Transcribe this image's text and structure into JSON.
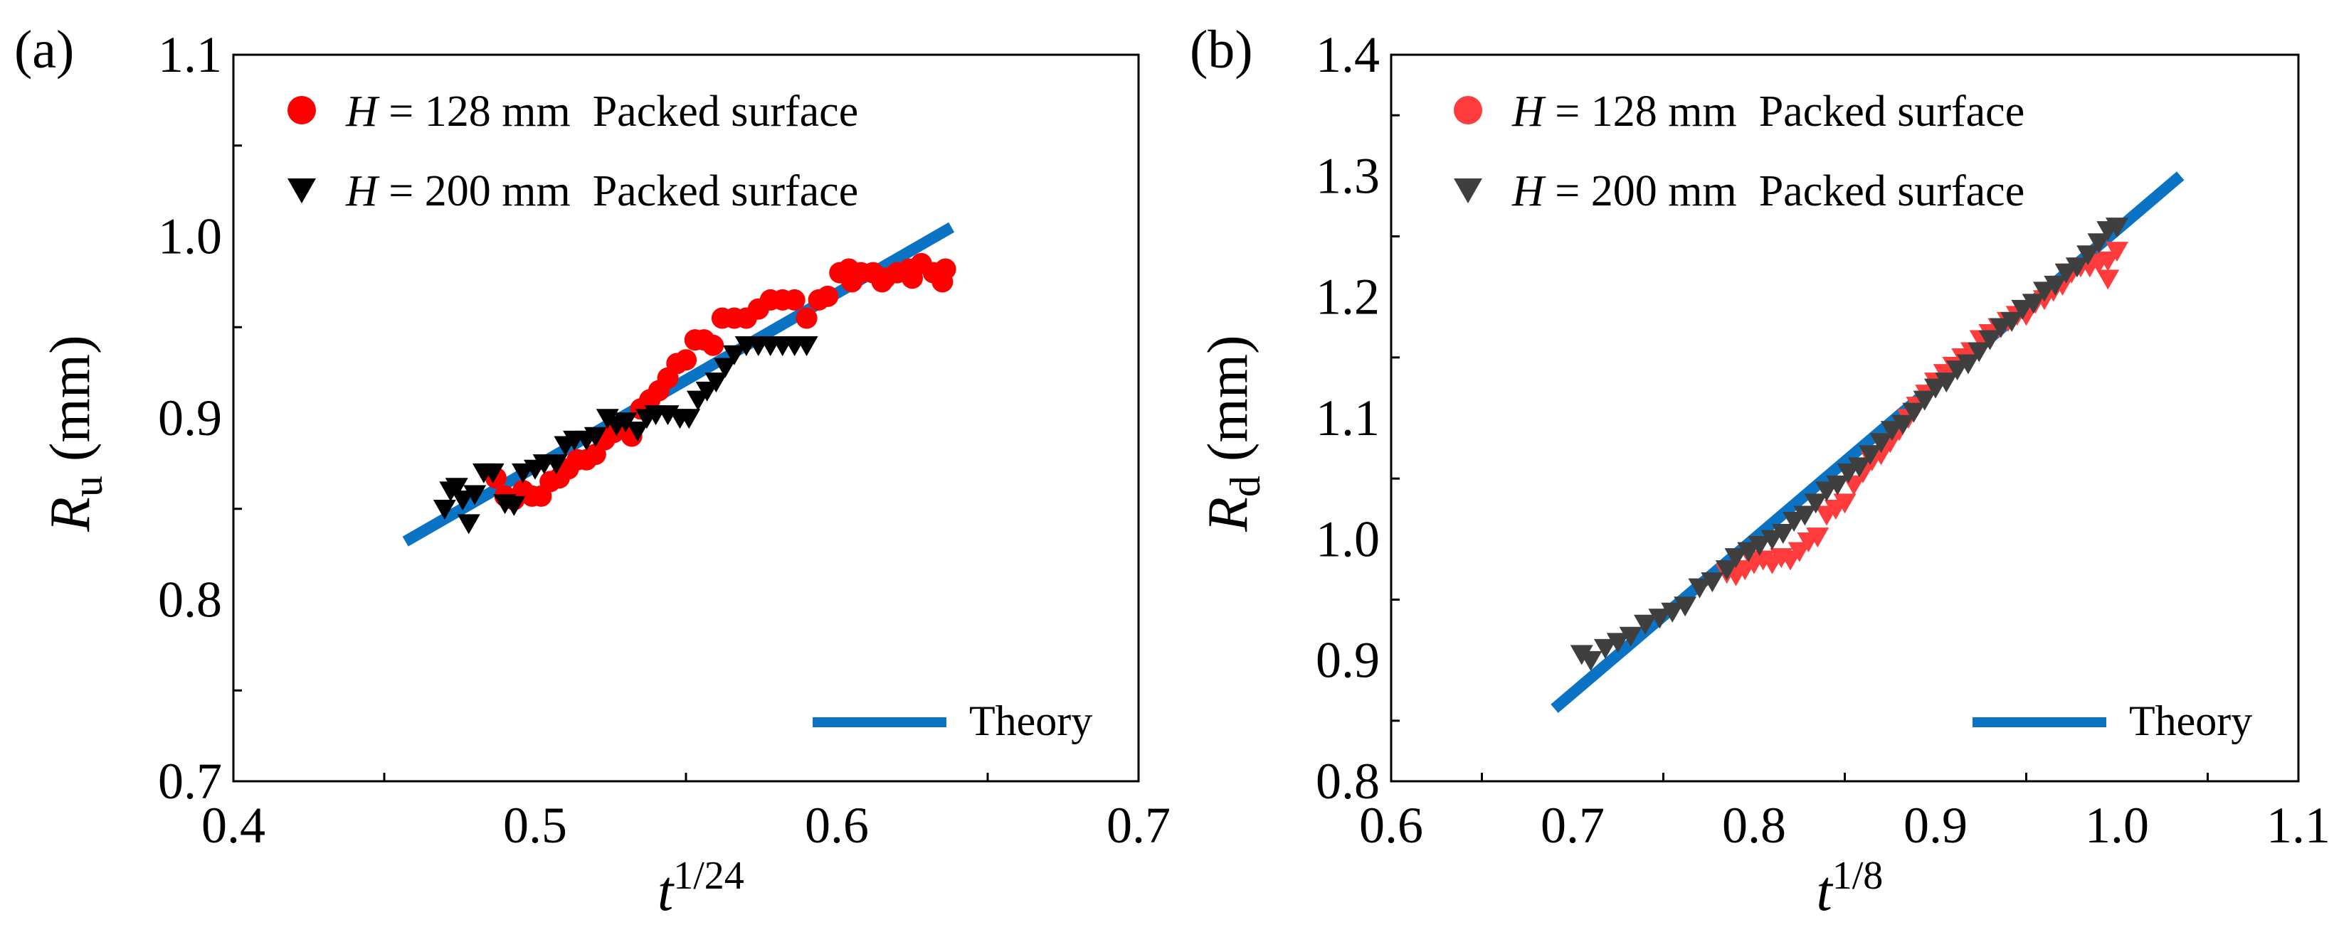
{
  "colors": {
    "red": "#ff0000",
    "black": "#000000",
    "darkgray": "#3f3f3f",
    "theory": "#0a73c4"
  },
  "chart_data": [
    {
      "panel_label": "(a)",
      "type": "scatter",
      "xlabel": {
        "base": "t",
        "sup": "1/24"
      },
      "ylabel": {
        "base": "R",
        "sub": "u",
        "unit": " (mm)"
      },
      "xlim": [
        0.4,
        0.7
      ],
      "ylim": [
        0.7,
        1.1
      ],
      "xticks": [
        "0.4",
        "0.5",
        "0.6",
        "0.7"
      ],
      "yticks": [
        "0.7",
        "0.8",
        "0.9",
        "1.0",
        "1.1"
      ],
      "legend_position": "top-left",
      "theory_legend_position": "bottom-right",
      "series": [
        {
          "name_prefix": "H",
          "name": " = 128 mm  Packed surface",
          "marker": "circle",
          "color": "#ff0000",
          "x": [
            0.487,
            0.49,
            0.493,
            0.496,
            0.499,
            0.502,
            0.505,
            0.508,
            0.511,
            0.514,
            0.517,
            0.52,
            0.523,
            0.526,
            0.529,
            0.532,
            0.535,
            0.538,
            0.541,
            0.544,
            0.547,
            0.55,
            0.553,
            0.556,
            0.559,
            0.562,
            0.566,
            0.57,
            0.574,
            0.578,
            0.582,
            0.586,
            0.59,
            0.594,
            0.597,
            0.601,
            0.604,
            0.608,
            0.612,
            0.616,
            0.62,
            0.624,
            0.628,
            0.632,
            0.636,
            0.605,
            0.615,
            0.625,
            0.635
          ],
          "y": [
            0.867,
            0.857,
            0.855,
            0.86,
            0.857,
            0.857,
            0.865,
            0.867,
            0.872,
            0.877,
            0.877,
            0.88,
            0.888,
            0.892,
            0.895,
            0.89,
            0.905,
            0.91,
            0.915,
            0.922,
            0.93,
            0.932,
            0.943,
            0.943,
            0.94,
            0.955,
            0.955,
            0.955,
            0.96,
            0.965,
            0.965,
            0.965,
            0.955,
            0.965,
            0.967,
            0.98,
            0.982,
            0.98,
            0.98,
            0.977,
            0.98,
            0.982,
            0.985,
            0.98,
            0.982,
            0.975,
            0.975,
            0.977,
            0.975
          ]
        },
        {
          "name_prefix": "H",
          "name": " = 200 mm  Packed surface",
          "marker": "triangle-down",
          "color": "#000000",
          "x": [
            0.47,
            0.472,
            0.474,
            0.476,
            0.478,
            0.48,
            0.483,
            0.486,
            0.49,
            0.493,
            0.496,
            0.5,
            0.503,
            0.507,
            0.51,
            0.513,
            0.517,
            0.52,
            0.524,
            0.527,
            0.53,
            0.534,
            0.537,
            0.54,
            0.544,
            0.548,
            0.551,
            0.554,
            0.557,
            0.56,
            0.563,
            0.566,
            0.57,
            0.574,
            0.578,
            0.582,
            0.586,
            0.59
          ],
          "y": [
            0.85,
            0.86,
            0.862,
            0.855,
            0.842,
            0.858,
            0.87,
            0.87,
            0.853,
            0.852,
            0.87,
            0.872,
            0.875,
            0.875,
            0.885,
            0.888,
            0.888,
            0.89,
            0.9,
            0.896,
            0.898,
            0.893,
            0.9,
            0.902,
            0.902,
            0.9,
            0.9,
            0.91,
            0.915,
            0.92,
            0.928,
            0.935,
            0.94,
            0.94,
            0.94,
            0.94,
            0.94,
            0.94
          ]
        }
      ],
      "theory": {
        "name": "Theory",
        "x": [
          0.457,
          0.638
        ],
        "y": [
          0.832,
          1.005
        ]
      }
    },
    {
      "panel_label": "(b)",
      "type": "scatter",
      "xlabel": {
        "base": "t",
        "sup": "1/8"
      },
      "ylabel": {
        "base": "R",
        "sub": "d",
        "unit": " (mm)"
      },
      "xlim": [
        0.6,
        1.1
      ],
      "ylim": [
        0.8,
        1.4
      ],
      "xticks": [
        "0.6",
        "0.7",
        "0.8",
        "0.9",
        "1.0",
        "1.1"
      ],
      "yticks": [
        "0.8",
        "0.9",
        "1.0",
        "1.1",
        "1.2",
        "1.3",
        "1.4"
      ],
      "legend_position": "top-left",
      "theory_legend_position": "bottom-right",
      "series": [
        {
          "name_prefix": "H",
          "name": " = 128 mm  Packed surface",
          "marker": "circle",
          "plot_marker": "triangle-down",
          "color": "#ff3b3b",
          "x": [
            0.785,
            0.79,
            0.795,
            0.8,
            0.805,
            0.81,
            0.815,
            0.82,
            0.825,
            0.83,
            0.835,
            0.84,
            0.845,
            0.85,
            0.855,
            0.86,
            0.865,
            0.87,
            0.875,
            0.88,
            0.885,
            0.89,
            0.895,
            0.9,
            0.905,
            0.91,
            0.915,
            0.92,
            0.925,
            0.93,
            0.935,
            0.94,
            0.945,
            0.95,
            0.955,
            0.96,
            0.965,
            0.97,
            0.975,
            0.98,
            0.985,
            0.99,
            0.995,
            1.0,
            0.995
          ],
          "y": [
            0.972,
            0.97,
            0.975,
            0.98,
            0.983,
            0.98,
            0.985,
            0.983,
            0.99,
            0.998,
            1.002,
            1.02,
            1.025,
            1.03,
            1.045,
            1.055,
            1.065,
            1.07,
            1.08,
            1.09,
            1.1,
            1.11,
            1.12,
            1.13,
            1.137,
            1.143,
            1.15,
            1.155,
            1.165,
            1.17,
            1.175,
            1.18,
            1.185,
            1.185,
            1.195,
            1.198,
            1.205,
            1.21,
            1.22,
            1.225,
            1.225,
            1.228,
            1.23,
            1.238,
            1.215
          ]
        },
        {
          "name_prefix": "H",
          "name": " = 200 mm  Packed surface",
          "marker": "triangle-down",
          "color": "#3f3f3f",
          "x": [
            0.705,
            0.71,
            0.718,
            0.725,
            0.732,
            0.74,
            0.748,
            0.755,
            0.762,
            0.77,
            0.777,
            0.785,
            0.79,
            0.797,
            0.803,
            0.81,
            0.816,
            0.822,
            0.828,
            0.834,
            0.84,
            0.846,
            0.852,
            0.858,
            0.864,
            0.87,
            0.876,
            0.882,
            0.888,
            0.894,
            0.9,
            0.906,
            0.912,
            0.918,
            0.924,
            0.93,
            0.936,
            0.942,
            0.948,
            0.954,
            0.96,
            0.966,
            0.972,
            0.978,
            0.984,
            0.99,
            0.995,
            1.0
          ],
          "y": [
            0.905,
            0.9,
            0.91,
            0.915,
            0.92,
            0.93,
            0.935,
            0.94,
            0.945,
            0.96,
            0.965,
            0.975,
            0.985,
            0.99,
            0.995,
            1.0,
            1.005,
            1.015,
            1.02,
            1.03,
            1.04,
            1.045,
            1.055,
            1.06,
            1.07,
            1.08,
            1.09,
            1.095,
            1.105,
            1.115,
            1.125,
            1.13,
            1.14,
            1.145,
            1.155,
            1.165,
            1.175,
            1.18,
            1.19,
            1.195,
            1.205,
            1.21,
            1.22,
            1.225,
            1.235,
            1.245,
            1.255,
            1.258
          ]
        }
      ],
      "theory": {
        "name": "Theory",
        "x": [
          0.69,
          1.035
        ],
        "y": [
          0.86,
          1.3
        ]
      }
    }
  ]
}
